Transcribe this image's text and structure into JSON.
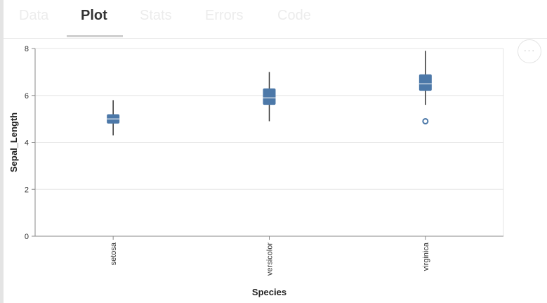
{
  "tabs": [
    {
      "label": "Data",
      "active": false
    },
    {
      "label": "Plot",
      "active": true
    },
    {
      "label": "Stats",
      "active": false
    },
    {
      "label": "Errors",
      "active": false
    },
    {
      "label": "Code",
      "active": false
    }
  ],
  "menu_button": {
    "icon": "more-horizontal-icon",
    "label": "···"
  },
  "colors": {
    "box": "#4c78a8",
    "median": "#ffffff",
    "grid": "#e5e5e5",
    "axis": "#888888"
  },
  "chart_data": {
    "type": "boxplot",
    "title": "",
    "xlabel": "Species",
    "ylabel": "Sepal_Length",
    "ylim": [
      0,
      8
    ],
    "yticks": [
      0,
      2,
      4,
      6,
      8
    ],
    "grid": true,
    "categories": [
      "setosa",
      "versicolor",
      "virginica"
    ],
    "boxes": [
      {
        "category": "setosa",
        "whisker_low": 4.3,
        "q1": 4.8,
        "median": 5.0,
        "q3": 5.2,
        "whisker_high": 5.8,
        "outliers": []
      },
      {
        "category": "versicolor",
        "whisker_low": 4.9,
        "q1": 5.6,
        "median": 5.9,
        "q3": 6.3,
        "whisker_high": 7.0,
        "outliers": []
      },
      {
        "category": "virginica",
        "whisker_low": 5.6,
        "q1": 6.2,
        "median": 6.5,
        "q3": 6.9,
        "whisker_high": 7.9,
        "outliers": [
          4.9
        ]
      }
    ]
  }
}
